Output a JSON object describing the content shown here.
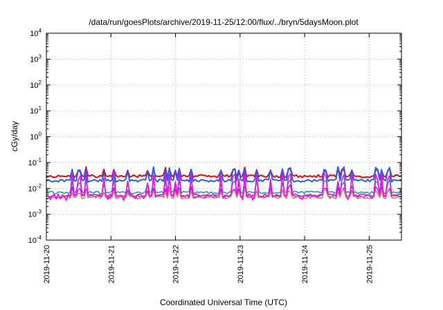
{
  "chart_data": {
    "type": "line",
    "title": "/data/run/goesPlots/archive/2019-11-25/12:00/flux/../bryn/5daysMoon.plot",
    "xlabel": "Coordinated Universal Time (UTC)",
    "ylabel": "cGy/day",
    "yscale": "log",
    "ylim": [
      0.0001,
      10000
    ],
    "y_ticks": [
      {
        "value": 0.0001,
        "base": "10",
        "exp": "-4"
      },
      {
        "value": 0.001,
        "base": "10",
        "exp": "-3"
      },
      {
        "value": 0.01,
        "base": "10",
        "exp": "-2"
      },
      {
        "value": 0.1,
        "base": "10",
        "exp": "-1"
      },
      {
        "value": 1,
        "base": "10",
        "exp": "0"
      },
      {
        "value": 10,
        "base": "10",
        "exp": "1"
      },
      {
        "value": 100,
        "base": "10",
        "exp": "2"
      },
      {
        "value": 1000,
        "base": "10",
        "exp": "3"
      },
      {
        "value": 10000,
        "base": "10",
        "exp": "4"
      }
    ],
    "xlim": [
      "2019-11-20",
      "2019-11-25T12:00"
    ],
    "x_ticks": [
      "2019-11-20",
      "2019-11-21",
      "2019-11-22",
      "2019-11-23",
      "2019-11-24",
      "2019-11-25"
    ],
    "grid": true,
    "series": [
      {
        "color": "#ff0000",
        "base": 0.03,
        "spike": 1.7
      },
      {
        "color": "#1f5fff",
        "base": 0.02,
        "spike": 2.4
      },
      {
        "color": "#00b388",
        "base": 0.007,
        "spike": 2.2
      },
      {
        "color": "#9933cc",
        "base": 0.005,
        "spike": 1.8
      },
      {
        "color": "#e07a6a",
        "base": 0.0045,
        "spike": 1.6
      },
      {
        "color": "#ff00ff",
        "base": 0.0055,
        "spike": 5.0
      }
    ]
  }
}
